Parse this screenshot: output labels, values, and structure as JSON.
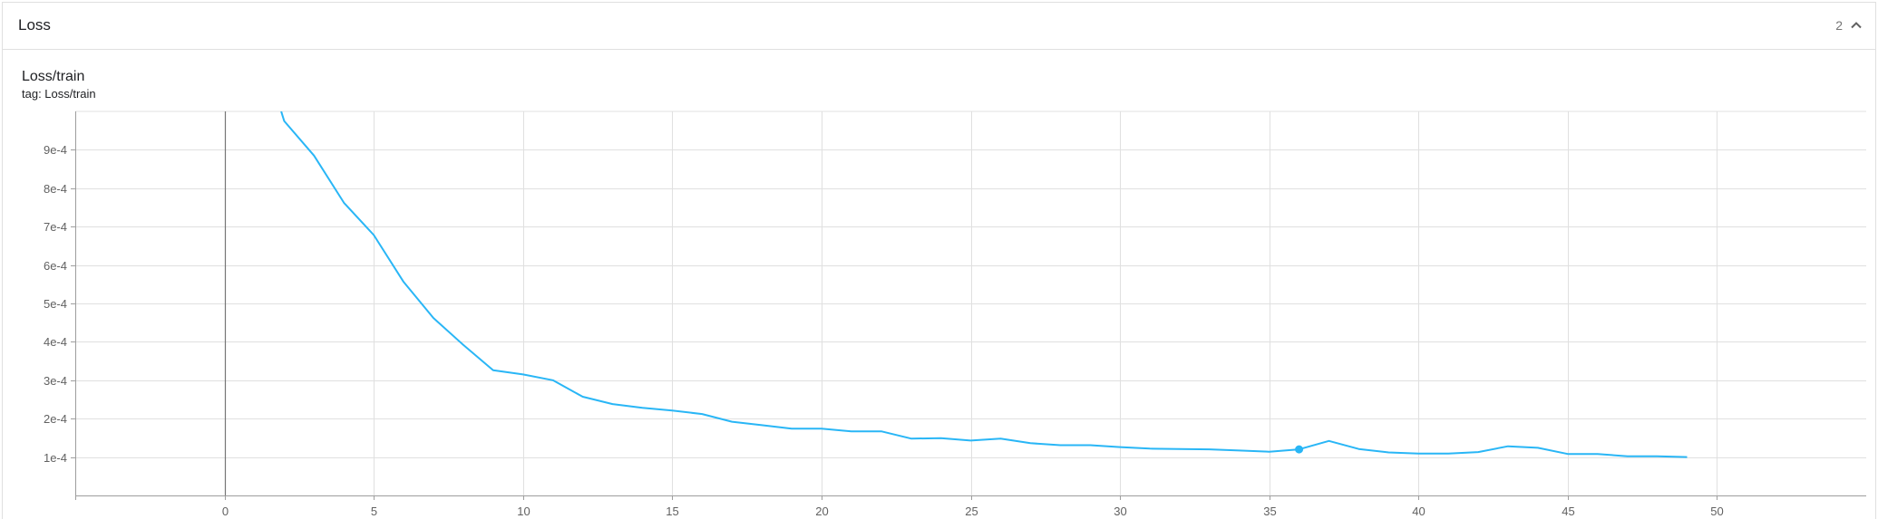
{
  "group": {
    "title": "Loss",
    "count": "2",
    "collapse_icon": "chevron-up-icon"
  },
  "plot": {
    "title": "Loss/train",
    "tag": "tag: Loss/train"
  },
  "chart_data": {
    "type": "line",
    "title": "Loss/train",
    "xlabel": "",
    "ylabel": "",
    "xlim": [
      -5,
      55
    ],
    "ylim": [
      0.0,
      0.001
    ],
    "x_ticks": [
      0,
      5,
      10,
      15,
      20,
      25,
      30,
      35,
      40,
      45,
      50
    ],
    "x_tick_labels": [
      "0",
      "5",
      "10",
      "15",
      "20",
      "25",
      "30",
      "35",
      "40",
      "45",
      "50"
    ],
    "y_ticks": [
      0.0001,
      0.0002,
      0.0003,
      0.0004,
      0.0005,
      0.0006,
      0.0007,
      0.0008,
      0.0009
    ],
    "y_tick_labels": [
      "1e-4",
      "2e-4",
      "3e-4",
      "4e-4",
      "5e-4",
      "6e-4",
      "7e-4",
      "8e-4",
      "9e-4"
    ],
    "grid": true,
    "series": [
      {
        "color": "#29b6f6",
        "x": [
          1.9,
          2,
          3,
          4,
          5,
          6,
          7,
          8,
          9,
          10,
          11,
          12,
          13,
          14,
          15,
          16,
          17,
          18,
          19,
          20,
          21,
          22,
          23,
          24,
          25,
          26,
          27,
          28,
          29,
          30,
          31,
          32,
          33,
          34,
          35,
          36,
          37,
          38,
          39,
          40,
          41,
          42,
          43,
          44,
          45,
          46,
          47,
          48,
          49
        ],
        "y": [
          0.001,
          0.000975,
          0.000885,
          0.000762,
          0.000678,
          0.000556,
          0.000462,
          0.000392,
          0.000326,
          0.000315,
          0.0003,
          0.000257,
          0.000238,
          0.000228,
          0.000221,
          0.000212,
          0.000192,
          0.000183,
          0.000174,
          0.000174,
          0.000167,
          0.000167,
          0.000148,
          0.000149,
          0.000143,
          0.000148,
          0.000136,
          0.000131,
          0.000131,
          0.000126,
          0.000122,
          0.000121,
          0.00012,
          0.000117,
          0.000114,
          0.00012,
          0.000142,
          0.000121,
          0.000112,
          0.000109,
          0.000109,
          0.000113,
          0.000128,
          0.000124,
          0.000108,
          0.000108,
          0.000102,
          0.000102,
          0.0001
        ],
        "highlight_index": 35
      }
    ]
  }
}
